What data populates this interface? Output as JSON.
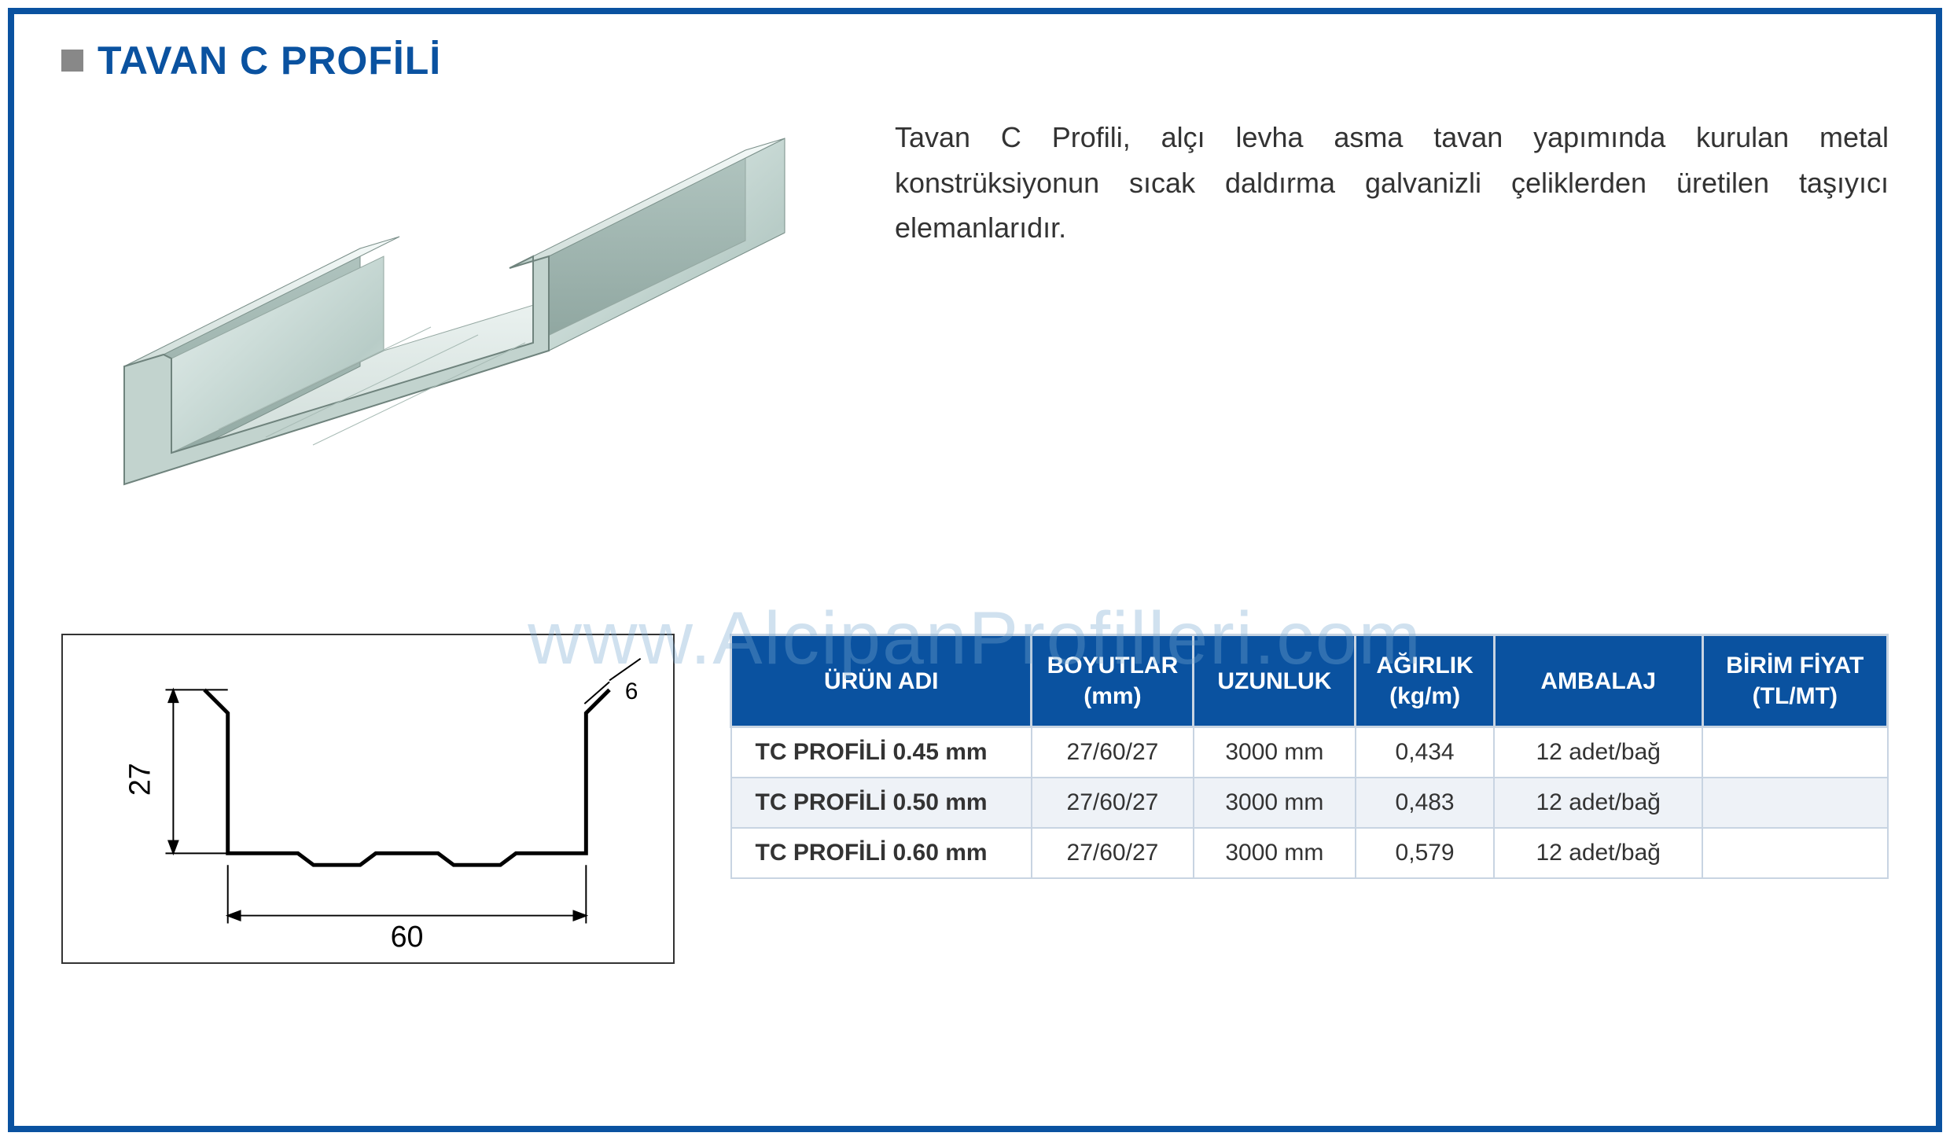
{
  "title": "TAVAN C PROFİLİ",
  "description": "Tavan C Profili, alçı levha asma tavan yapımında kurulan metal konstrüksiyonun sıcak daldırma galvanizli çeliklerden üretilen taşıyıcı elemanlarıdır.",
  "watermark": "www.AlcipanProfilleri.com",
  "colors": {
    "frame": "#0a52a0",
    "header_bg": "#0a52a0",
    "header_text": "#ffffff",
    "border": "#c8d4e2",
    "alt_row": "#eef2f7",
    "title": "#0a52a0",
    "bullet": "#888888",
    "watermark": "rgba(120,170,210,0.35)"
  },
  "diagram": {
    "height_label": "27",
    "width_label": "60",
    "flange_label": "6"
  },
  "table": {
    "columns": [
      "ÜRÜN ADI",
      "BOYUTLAR (mm)",
      "UZUNLUK",
      "AĞIRLIK (kg/m)",
      "AMBALAJ",
      "BİRİM FİYAT (TL/MT)"
    ],
    "col_widths_pct": [
      26,
      14,
      14,
      12,
      18,
      16
    ],
    "rows": [
      {
        "name": "TC PROFİLİ 0.45 mm",
        "dims": "27/60/27",
        "length": "3000 mm",
        "weight": "0,434",
        "packaging": "12 adet/bağ",
        "price": "",
        "alt": false
      },
      {
        "name": "TC PROFİLİ 0.50 mm",
        "dims": "27/60/27",
        "length": "3000 mm",
        "weight": "0,483",
        "packaging": "12 adet/bağ",
        "price": "",
        "alt": true
      },
      {
        "name": "TC PROFİLİ 0.60 mm",
        "dims": "27/60/27",
        "length": "3000 mm",
        "weight": "0,579",
        "packaging": "12 adet/bağ",
        "price": "",
        "alt": false
      }
    ]
  }
}
